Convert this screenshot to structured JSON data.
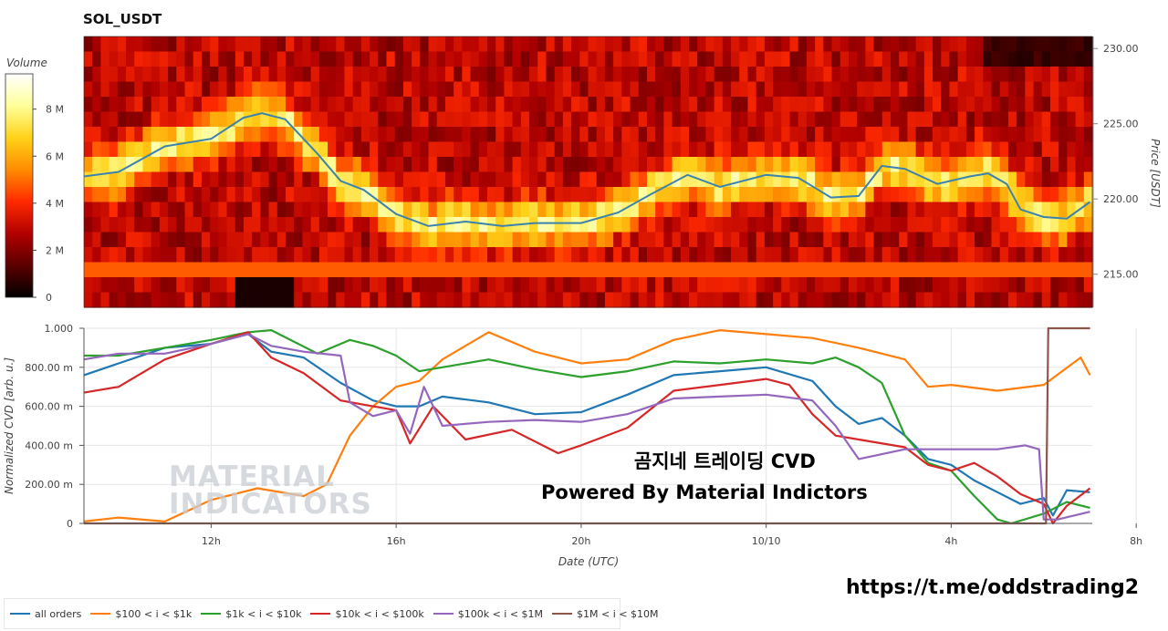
{
  "chart_title": "SOL_USDT",
  "chart_data": [
    {
      "type": "heatmap",
      "title": "SOL_USDT",
      "ylabel": "Price [USDT]",
      "ylim": [
        212.8,
        230.8
      ],
      "yticks": [
        "230.00",
        "225.00",
        "220.00",
        "215.00"
      ],
      "colorbar": {
        "label": "Volume",
        "ticks": [
          "8 M",
          "6 M",
          "4 M",
          "2 M",
          "0"
        ],
        "range": [
          0,
          9.5
        ]
      },
      "colors": [
        "#000000",
        "#5c0000",
        "#b20000",
        "#ff2a00",
        "#ff8c00",
        "#ffd21a",
        "#ffff99",
        "#ffffff"
      ],
      "price_line": {
        "color": "#3b82ad",
        "x_hours": [
          9.25,
          10.0,
          11.0,
          12.0,
          12.7,
          13.1,
          13.6,
          14.3,
          14.8,
          15.3,
          16.0,
          16.7,
          17.5,
          18.3,
          19.0,
          20.0,
          20.8,
          21.5,
          22.3,
          23.0,
          24.0,
          24.7,
          25.4,
          26.0,
          26.5,
          27.0,
          27.7,
          28.4,
          28.8,
          29.2,
          29.5,
          30.0,
          30.5,
          31.0
        ],
        "price": [
          221.5,
          221.8,
          223.5,
          224.0,
          225.4,
          225.7,
          225.3,
          223.0,
          221.2,
          220.6,
          219.0,
          218.2,
          218.5,
          218.2,
          218.4,
          218.4,
          219.1,
          220.3,
          221.6,
          220.8,
          221.6,
          221.4,
          220.1,
          220.2,
          222.2,
          222.0,
          221.0,
          221.5,
          221.7,
          221.0,
          219.3,
          218.8,
          218.7,
          219.8
        ]
      }
    },
    {
      "type": "line",
      "xlabel": "Date (UTC)",
      "ylabel": "Normalized CVD [arb. u.]",
      "ylim": [
        0,
        1
      ],
      "yticks": [
        "1.000",
        "800.00 m",
        "600.00 m",
        "400.00 m",
        "200.00 m",
        "0"
      ],
      "xlim_hours": [
        9.25,
        31.05
      ],
      "xticks": [
        "12h",
        "16h",
        "20h",
        "10/10",
        "4h",
        "8h"
      ],
      "series": [
        {
          "name": "all orders",
          "color": "#1f77b4",
          "x": [
            9.25,
            10.0,
            11.0,
            12.0,
            12.8,
            13.3,
            14.0,
            14.8,
            15.5,
            16.0,
            16.5,
            17.0,
            18.0,
            19.0,
            20.0,
            21.0,
            22.0,
            23.0,
            24.0,
            25.0,
            25.5,
            26.0,
            26.5,
            27.0,
            27.5,
            28.0,
            28.5,
            29.0,
            29.5,
            30.0,
            30.2,
            30.5,
            31.0
          ],
          "y": [
            0.76,
            0.82,
            0.9,
            0.92,
            0.97,
            0.88,
            0.85,
            0.72,
            0.63,
            0.6,
            0.6,
            0.65,
            0.62,
            0.56,
            0.57,
            0.66,
            0.76,
            0.78,
            0.8,
            0.73,
            0.6,
            0.51,
            0.54,
            0.45,
            0.33,
            0.3,
            0.22,
            0.16,
            0.1,
            0.13,
            0.04,
            0.17,
            0.16
          ]
        },
        {
          "name": "$100 < i < $1k",
          "color": "#ff7f0e",
          "x": [
            9.25,
            10.0,
            11.0,
            12.0,
            13.0,
            14.0,
            14.5,
            15.0,
            15.5,
            16.0,
            16.5,
            17.0,
            18.0,
            19.0,
            20.0,
            21.0,
            22.0,
            23.0,
            24.0,
            25.0,
            26.0,
            27.0,
            27.5,
            28.0,
            29.0,
            30.0,
            30.8,
            31.0
          ],
          "y": [
            0.01,
            0.03,
            0.01,
            0.12,
            0.18,
            0.14,
            0.2,
            0.45,
            0.6,
            0.7,
            0.73,
            0.84,
            0.98,
            0.88,
            0.82,
            0.84,
            0.94,
            0.99,
            0.97,
            0.95,
            0.9,
            0.84,
            0.7,
            0.71,
            0.68,
            0.71,
            0.85,
            0.76
          ]
        },
        {
          "name": "$1k < i < $10k",
          "color": "#2ca02c",
          "x": [
            9.25,
            10.0,
            11.0,
            12.0,
            12.8,
            13.3,
            14.3,
            15.0,
            15.5,
            16.0,
            16.5,
            17.0,
            18.0,
            19.0,
            20.0,
            21.0,
            22.0,
            23.0,
            24.0,
            25.0,
            25.5,
            26.0,
            26.5,
            27.0,
            27.5,
            28.0,
            28.5,
            29.0,
            29.3,
            30.0,
            30.5,
            31.0
          ],
          "y": [
            0.86,
            0.86,
            0.9,
            0.94,
            0.98,
            0.99,
            0.87,
            0.94,
            0.91,
            0.86,
            0.78,
            0.8,
            0.84,
            0.79,
            0.75,
            0.78,
            0.83,
            0.82,
            0.84,
            0.82,
            0.85,
            0.8,
            0.72,
            0.45,
            0.31,
            0.27,
            0.14,
            0.02,
            0.0,
            0.05,
            0.11,
            0.08
          ]
        },
        {
          "name": "$10k < i < $100k",
          "color": "#d62728",
          "x": [
            9.25,
            10.0,
            11.0,
            12.0,
            12.8,
            13.3,
            14.0,
            14.8,
            15.5,
            16.0,
            16.3,
            16.8,
            17.5,
            18.5,
            19.5,
            20.0,
            21.0,
            22.0,
            23.0,
            24.0,
            24.5,
            25.0,
            25.5,
            26.0,
            27.0,
            27.5,
            28.0,
            28.5,
            29.0,
            29.5,
            30.0,
            30.2,
            30.5,
            31.0
          ],
          "y": [
            0.67,
            0.7,
            0.84,
            0.92,
            0.98,
            0.85,
            0.77,
            0.63,
            0.6,
            0.58,
            0.41,
            0.6,
            0.43,
            0.48,
            0.36,
            0.4,
            0.49,
            0.68,
            0.71,
            0.74,
            0.71,
            0.56,
            0.45,
            0.43,
            0.39,
            0.3,
            0.27,
            0.31,
            0.24,
            0.15,
            0.1,
            0.0,
            0.09,
            0.18
          ]
        },
        {
          "name": "$100k < i < $1M",
          "color": "#9467bd",
          "x": [
            9.25,
            10.0,
            11.0,
            12.0,
            12.8,
            13.3,
            14.0,
            14.8,
            15.0,
            15.5,
            16.0,
            16.3,
            16.6,
            17.0,
            18.0,
            19.0,
            20.0,
            21.0,
            22.0,
            23.0,
            24.0,
            25.0,
            25.5,
            26.0,
            27.0,
            28.0,
            29.0,
            29.6,
            29.9,
            30.0,
            30.3,
            31.0
          ],
          "y": [
            0.84,
            0.87,
            0.87,
            0.92,
            0.97,
            0.91,
            0.88,
            0.86,
            0.62,
            0.55,
            0.58,
            0.46,
            0.7,
            0.5,
            0.52,
            0.53,
            0.52,
            0.56,
            0.64,
            0.65,
            0.66,
            0.63,
            0.5,
            0.33,
            0.38,
            0.38,
            0.38,
            0.4,
            0.38,
            0.02,
            0.02,
            0.06
          ]
        },
        {
          "name": "$1M < i < $10M",
          "color": "#8c564b",
          "x": [
            9.25,
            29.8,
            30.05,
            30.1,
            31.0
          ],
          "y": [
            0.0,
            0.0,
            0.0,
            1.0,
            1.0
          ]
        }
      ]
    }
  ],
  "overlay": {
    "korean_title": "곰지네 트레이딩 CVD",
    "subtitle": "Powered By Material Indictors"
  },
  "watermark": {
    "line1": "MATERIAL",
    "line2": "INDICATORS"
  },
  "link": "https://t.me/oddstrading2",
  "legend": {
    "items": [
      {
        "label": "all orders",
        "color": "#1f77b4"
      },
      {
        "label": "$100 < i < $1k",
        "color": "#ff7f0e"
      },
      {
        "label": "$1k < i < $10k",
        "color": "#2ca02c"
      },
      {
        "label": "$10k < i < $100k",
        "color": "#d62728"
      },
      {
        "label": "$100k < i < $1M",
        "color": "#9467bd"
      },
      {
        "label": "$1M < i < $10M",
        "color": "#8c564b"
      }
    ]
  }
}
